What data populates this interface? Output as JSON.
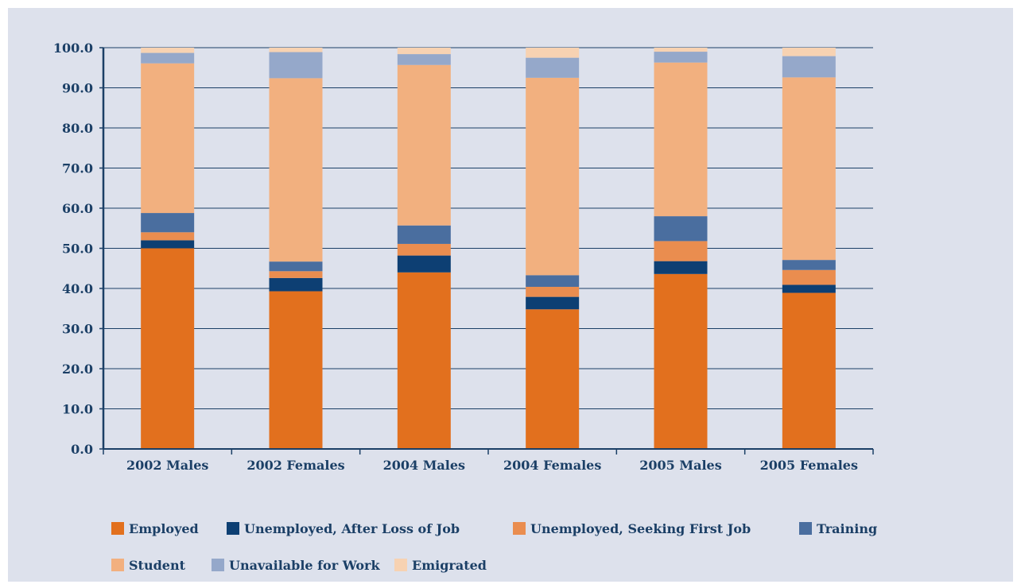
{
  "chart_data": {
    "type": "bar",
    "stacked": true,
    "title": "",
    "xlabel": "",
    "ylabel": "",
    "ylim": [
      0,
      100
    ],
    "yticks": [
      "0.0",
      "10.0",
      "20.0",
      "30.0",
      "40.0",
      "50.0",
      "60.0",
      "70.0",
      "80.0",
      "90.0",
      "100.0"
    ],
    "grid": true,
    "legend_position": "bottom",
    "categories": [
      "2002 Males",
      "2002 Females",
      "2004 Males",
      "2004 Females",
      "2005 Males",
      "2005 Females"
    ],
    "series": [
      {
        "name": "Employed",
        "color": "#e2701e",
        "values": [
          50.0,
          39.3,
          44.0,
          34.8,
          43.6,
          38.9
        ]
      },
      {
        "name": "Unemployed, After Loss of Job",
        "color": "#0d3f73",
        "values": [
          2.0,
          3.3,
          4.2,
          3.1,
          3.2,
          2.0
        ]
      },
      {
        "name": "Unemployed, Seeking First Job",
        "color": "#ea8d4f",
        "values": [
          2.0,
          1.7,
          2.9,
          2.5,
          5.0,
          3.7
        ]
      },
      {
        "name": "Training",
        "color": "#4a6e9f",
        "values": [
          4.8,
          2.4,
          4.6,
          2.9,
          6.2,
          2.5
        ]
      },
      {
        "name": "Student",
        "color": "#f2b07f",
        "values": [
          37.3,
          45.7,
          40.0,
          49.2,
          38.3,
          45.5
        ]
      },
      {
        "name": "Unavailable for Work",
        "color": "#95a8ca",
        "values": [
          2.6,
          6.5,
          2.7,
          5.0,
          2.7,
          5.3
        ]
      },
      {
        "name": "Emigrated",
        "color": "#f7d2b2",
        "values": [
          1.3,
          1.1,
          1.6,
          2.5,
          1.0,
          2.1
        ]
      }
    ]
  }
}
